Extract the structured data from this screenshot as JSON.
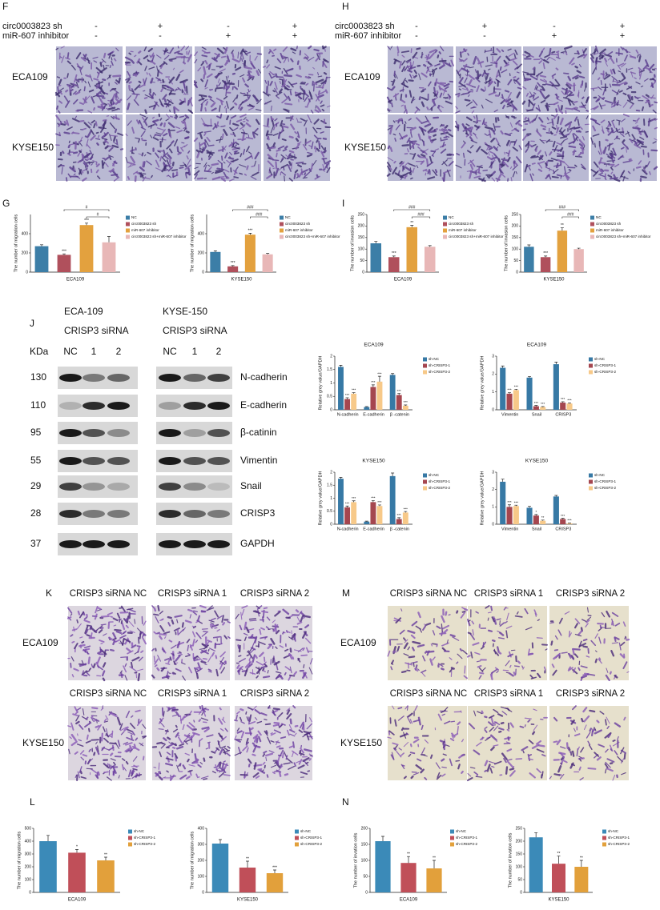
{
  "figure": {
    "F": {
      "letter": "F",
      "header": [
        {
          "label": "circ0003823 sh",
          "marks": [
            "-",
            "+",
            "-",
            "+"
          ]
        },
        {
          "label": "miR-607 inhibitor",
          "marks": [
            "-",
            "-",
            "+",
            "+"
          ]
        }
      ],
      "rows": [
        "ECA109",
        "KYSE150"
      ]
    },
    "H": {
      "letter": "H",
      "header": [
        {
          "label": "circ0003823 sh",
          "marks": [
            "-",
            "+",
            "-",
            "+"
          ]
        },
        {
          "label": "miR-607 inhibitor",
          "marks": [
            "-",
            "-",
            "+",
            "+"
          ]
        }
      ],
      "rows": [
        "ECA109",
        "KYSE150"
      ]
    },
    "G": {
      "letter": "G"
    },
    "I": {
      "letter": "I"
    },
    "J": {
      "letter": "J",
      "kda_label": "KDa",
      "groups": [
        {
          "cell": "ECA-109",
          "treatment": "CRISP3 siRNA",
          "lanes": [
            "NC",
            "1",
            "2"
          ]
        },
        {
          "cell": "KYSE-150",
          "treatment": "CRISP3 siRNA",
          "lanes": [
            "NC",
            "1",
            "2"
          ]
        }
      ],
      "rows": [
        {
          "kda": 130,
          "protein": "N-cadherin"
        },
        {
          "kda": 110,
          "protein": "E-cadherin"
        },
        {
          "kda": 95,
          "protein": "β-catinin"
        },
        {
          "kda": 55,
          "protein": "Vimentin"
        },
        {
          "kda": 29,
          "protein": "Snail"
        },
        {
          "kda": 28,
          "protein": "CRISP3"
        },
        {
          "kda": 37,
          "protein": "GAPDH"
        }
      ]
    },
    "K": {
      "letter": "K",
      "rows": [
        {
          "label": "ECA109",
          "columns": [
            "CRISP3 siRNA NC",
            "CRISP3 siRNA 1",
            "CRISP3 siRNA 2"
          ]
        },
        {
          "label": "KYSE150",
          "columns": [
            "CRISP3 siRNA NC",
            "CRISP3 siRNA 1",
            "CRISP3 siRNA 2"
          ]
        }
      ]
    },
    "M": {
      "letter": "M",
      "rows": [
        {
          "label": "ECA109",
          "columns": [
            "CRISP3 siRNA NC",
            "CRISP3 siRNA 1",
            "CRISP3 siRNA 2"
          ]
        },
        {
          "label": "KYSE150",
          "columns": [
            "CRISP3 siRNA NC",
            "CRISP3 siRNA 1",
            "CRISP3 siRNA 2"
          ]
        }
      ]
    },
    "L": {
      "letter": "L"
    },
    "N": {
      "letter": "N"
    }
  },
  "chart_data": [
    {
      "type": "bar",
      "x_label": "ECA109",
      "y_label": "The number of migration cells",
      "categories": [
        "NC",
        "circ0003823 sh",
        "miR-607 inhibitor",
        "circ0003823 sh+miR-607 inhibitor"
      ],
      "colors": [
        "#3c7ea7",
        "#b0505c",
        "#e3a13e",
        "#e8b7b7"
      ],
      "values": [
        270,
        180,
        490,
        310
      ],
      "errors": [
        15,
        10,
        20,
        60
      ],
      "sig": [
        null,
        "***",
        "***",
        null
      ],
      "brackets": [
        "#",
        "#"
      ],
      "ylim": [
        0,
        600
      ],
      "yticks": [
        0,
        200,
        400
      ]
    },
    {
      "type": "bar",
      "x_label": "KYSE150",
      "y_label": "The number of migration cells",
      "categories": [
        "NC",
        "circ0003823 sh",
        "miR-607 inhibitor",
        "circ0003823 sh+miR-607 inhibitor"
      ],
      "colors": [
        "#3c7ea7",
        "#b0505c",
        "#e3a13e",
        "#e8b7b7"
      ],
      "values": [
        210,
        60,
        390,
        185
      ],
      "errors": [
        12,
        8,
        15,
        10
      ],
      "sig": [
        null,
        "***",
        "***",
        null
      ],
      "brackets": [
        "###",
        "###"
      ],
      "ylim": [
        0,
        600
      ],
      "yticks": [
        0,
        200,
        400
      ]
    },
    {
      "type": "bar",
      "x_label": "ECA109",
      "y_label": "The number of invasion cells",
      "categories": [
        "NC",
        "circ0003823 sh",
        "miR-607 inhibitor",
        "circ0003823 sh+miR-607 inhibitor"
      ],
      "colors": [
        "#3c7ea7",
        "#b0505c",
        "#e3a13e",
        "#e8b7b7"
      ],
      "values": [
        125,
        65,
        195,
        110
      ],
      "errors": [
        8,
        5,
        8,
        5
      ],
      "sig": [
        null,
        "***",
        "**",
        null
      ],
      "brackets": [
        "###",
        "###"
      ],
      "ylim": [
        0,
        250
      ],
      "yticks": [
        0,
        50,
        100,
        150,
        200,
        250
      ]
    },
    {
      "type": "bar",
      "x_label": "KYSE150",
      "y_label": "The number of invasion cells",
      "categories": [
        "NC",
        "circ0003823 sh",
        "miR-607 inhibitor",
        "circ0003823 sh+miR-607 inhibitor"
      ],
      "colors": [
        "#3c7ea7",
        "#b0505c",
        "#e3a13e",
        "#e8b7b7"
      ],
      "values": [
        110,
        65,
        180,
        100
      ],
      "errors": [
        8,
        5,
        12,
        4
      ],
      "sig": [
        null,
        "***",
        "**",
        null
      ],
      "brackets": [
        "###",
        "###"
      ],
      "ylim": [
        0,
        250
      ],
      "yticks": [
        0,
        50,
        100,
        150,
        200,
        250
      ]
    },
    {
      "type": "grouped_bar",
      "title": "ECA109",
      "y_label": "Relative grey value/GAPDH",
      "categories": [
        "N-cadherin",
        "E-cadherin",
        "β -catenin"
      ],
      "series": [
        {
          "name": "sh-NC",
          "color": "#3779a5",
          "values": [
            1.6,
            0.1,
            1.3
          ],
          "errors": [
            0.06,
            0.02,
            0.05
          ]
        },
        {
          "name": "sh-CRISP3-1",
          "color": "#a5464f",
          "values": [
            0.4,
            0.85,
            0.55
          ],
          "errors": [
            0.05,
            0.08,
            0.06
          ],
          "sig": [
            "***",
            "***",
            "***"
          ]
        },
        {
          "name": "sh-CRISP3-2",
          "color": "#f7c989",
          "values": [
            0.6,
            1.05,
            0.15
          ],
          "errors": [
            0.04,
            0.2,
            0.03
          ],
          "sig": [
            "***",
            "***",
            "***"
          ]
        }
      ],
      "ylim": [
        0,
        2
      ],
      "yticks": [
        0,
        0.5,
        1,
        1.5,
        2
      ]
    },
    {
      "type": "grouped_bar",
      "title": "ECA109",
      "y_label": "Relative grey value/GAPDH",
      "categories": [
        "Vimentin",
        "Snail",
        "CRISP3"
      ],
      "series": [
        {
          "name": "sh-NC",
          "color": "#3779a5",
          "values": [
            2.35,
            1.8,
            2.55
          ],
          "errors": [
            0.1,
            0.06,
            0.12
          ]
        },
        {
          "name": "sh-CRISP3-1",
          "color": "#a5464f",
          "values": [
            0.9,
            0.2,
            0.4
          ],
          "errors": [
            0.06,
            0.04,
            0.05
          ],
          "sig": [
            "***",
            "***",
            "***"
          ]
        },
        {
          "name": "sh-CRISP3-2",
          "color": "#f7c989",
          "values": [
            1.1,
            0.15,
            0.35
          ],
          "errors": [
            0.05,
            0.03,
            0.04
          ],
          "sig": [
            "***",
            "***",
            "***"
          ]
        }
      ],
      "ylim": [
        0,
        3
      ],
      "yticks": [
        0,
        1,
        2,
        3
      ]
    },
    {
      "type": "grouped_bar",
      "title": "KYSE150",
      "y_label": "Relative grey value/GAPDH",
      "categories": [
        "N-cadherin",
        "E-cadherin",
        "β -catenin"
      ],
      "series": [
        {
          "name": "sh-NC",
          "color": "#3779a5",
          "values": [
            1.75,
            0.1,
            1.85
          ],
          "errors": [
            0.05,
            0.02,
            0.12
          ]
        },
        {
          "name": "sh-CRISP3-1",
          "color": "#a5464f",
          "values": [
            0.65,
            0.85,
            0.2
          ],
          "errors": [
            0.05,
            0.06,
            0.05
          ],
          "sig": [
            "***",
            "***",
            "***"
          ]
        },
        {
          "name": "sh-CRISP3-2",
          "color": "#f7c989",
          "values": [
            0.85,
            0.7,
            0.45
          ],
          "errors": [
            0.05,
            0.04,
            0.04
          ],
          "sig": [
            "***",
            "***",
            "***"
          ]
        }
      ],
      "ylim": [
        0,
        2
      ],
      "yticks": [
        0,
        0.5,
        1,
        1.5,
        2
      ]
    },
    {
      "type": "grouped_bar",
      "title": "KYSE150",
      "y_label": "Relative grey value/GAPDH",
      "categories": [
        "Vimentin",
        "Snail",
        "CRISP3"
      ],
      "series": [
        {
          "name": "sh-NC",
          "color": "#3779a5",
          "values": [
            2.45,
            0.95,
            1.6
          ],
          "errors": [
            0.15,
            0.08,
            0.06
          ]
        },
        {
          "name": "sh-CRISP3-1",
          "color": "#a5464f",
          "values": [
            1.0,
            0.5,
            0.3
          ],
          "errors": [
            0.12,
            0.06,
            0.04
          ],
          "sig": [
            "***",
            "*",
            "***"
          ]
        },
        {
          "name": "sh-CRISP3-2",
          "color": "#f7c989",
          "values": [
            1.05,
            0.2,
            0.05
          ],
          "errors": [
            0.05,
            0.04,
            0.02
          ],
          "sig": [
            "***",
            "**",
            "***"
          ]
        }
      ],
      "ylim": [
        0,
        3
      ],
      "yticks": [
        0,
        1,
        2,
        3
      ]
    },
    {
      "type": "bar",
      "x_label": "ECA109",
      "y_label": "The number of migration cells",
      "categories": [
        "sh-NC",
        "sh-CRISP3-1",
        "sh-CRISP3-2"
      ],
      "colors": [
        "#3b8ab8",
        "#c04f59",
        "#e2a03b"
      ],
      "values": [
        400,
        310,
        250
      ],
      "errors": [
        45,
        25,
        25
      ],
      "sig": [
        null,
        "*",
        "**"
      ],
      "ylim": [
        0,
        500
      ],
      "yticks": [
        0,
        100,
        200,
        300,
        400,
        500
      ]
    },
    {
      "type": "bar",
      "x_label": "KYSE150",
      "y_label": "The number of migration cells",
      "categories": [
        "sh-NC",
        "sh-CRISP3-1",
        "sh-CRISP3-2"
      ],
      "colors": [
        "#3b8ab8",
        "#c04f59",
        "#e2a03b"
      ],
      "values": [
        305,
        155,
        120
      ],
      "errors": [
        25,
        40,
        20
      ],
      "sig": [
        null,
        "**",
        "***"
      ],
      "ylim": [
        0,
        400
      ],
      "yticks": [
        0,
        100,
        200,
        300,
        400
      ]
    },
    {
      "type": "bar",
      "x_label": "ECA109",
      "y_label": "The number of invation cells",
      "categories": [
        "sh-NC",
        "sh-CRISP3-1",
        "sh-CRISP3-2"
      ],
      "colors": [
        "#3b8ab8",
        "#c04f59",
        "#e2a03b"
      ],
      "values": [
        160,
        92,
        75
      ],
      "errors": [
        15,
        20,
        25
      ],
      "sig": [
        null,
        "**",
        "**"
      ],
      "ylim": [
        0,
        200
      ],
      "yticks": [
        0,
        50,
        100,
        150,
        200
      ]
    },
    {
      "type": "bar",
      "x_label": "KYSE150",
      "y_label": "The number of invation cells",
      "categories": [
        "sh-NC",
        "sh-CRISP3-1",
        "sh-CRISP3-2"
      ],
      "colors": [
        "#3b8ab8",
        "#c04f59",
        "#e2a03b"
      ],
      "values": [
        215,
        112,
        100
      ],
      "errors": [
        18,
        30,
        25
      ],
      "sig": [
        null,
        "**",
        "**"
      ],
      "ylim": [
        0,
        250
      ],
      "yticks": [
        0,
        50,
        100,
        150,
        200,
        250
      ]
    }
  ]
}
